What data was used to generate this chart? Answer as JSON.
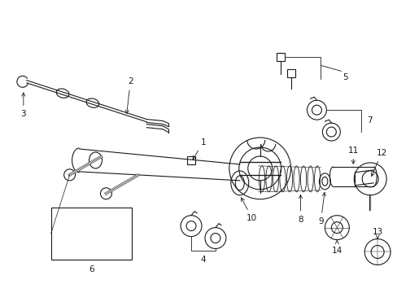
{
  "bg_color": "#ffffff",
  "line_color": "#1a1a1a",
  "fig_width": 4.89,
  "fig_height": 3.6,
  "dpi": 100,
  "label_fs": 7.5,
  "lw": 0.8
}
